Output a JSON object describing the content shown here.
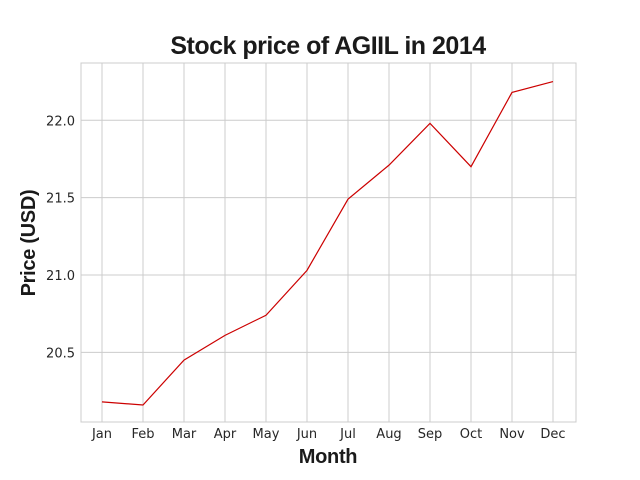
{
  "chart_data": {
    "type": "line",
    "title": "Stock price of AGIIL in 2014",
    "xlabel": "Month",
    "ylabel": "Price (USD)",
    "categories": [
      "Jan",
      "Feb",
      "Mar",
      "Apr",
      "May",
      "Jun",
      "Jul",
      "Aug",
      "Sep",
      "Oct",
      "Nov",
      "Dec"
    ],
    "series": [
      {
        "values": [
          20.18,
          20.16,
          20.45,
          20.61,
          20.74,
          21.03,
          21.49,
          21.71,
          21.98,
          21.7,
          22.18,
          22.25
        ],
        "color": "#cc0000"
      }
    ],
    "ylim": [
      20.05,
      22.37
    ],
    "yticks": [
      20.5,
      21.0,
      21.5,
      22.0
    ],
    "ytick_labels": [
      "20.5",
      "21.0",
      "21.5",
      "22.0"
    ],
    "grid": true,
    "legend": false
  }
}
